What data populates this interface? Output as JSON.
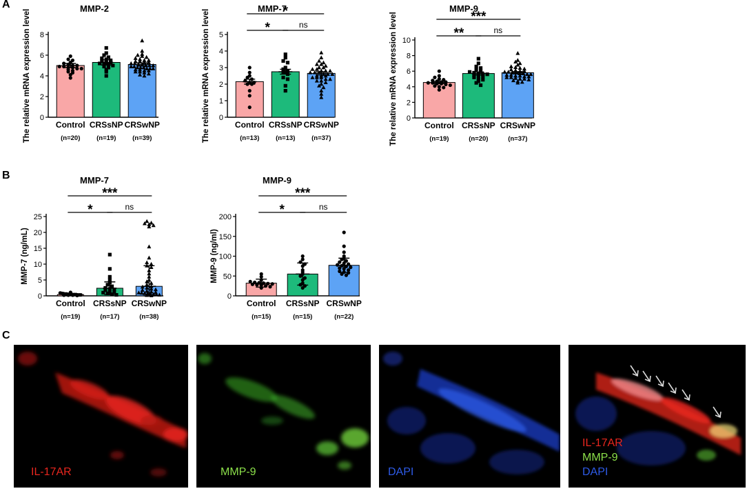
{
  "panel_letters": {
    "a": "A",
    "b": "B",
    "c": "C"
  },
  "colors": {
    "control": "#F9A7A7",
    "crssnp": "#1DBA7B",
    "crswnp": "#5DA3F5",
    "arrow": "#D9D9D9",
    "red_channel": "#E8261E",
    "green_channel": "#8CE04A",
    "blue_channel": "#2E5BE8"
  },
  "chart_data": [
    {
      "type": "bar",
      "title": "MMP-2",
      "ylabel": "The relative mRNA expression level",
      "categories": [
        "Control",
        "CRSsNP",
        "CRSwNP"
      ],
      "n_labels": [
        "(n=20)",
        "(n=19)",
        "(n=39)"
      ],
      "values": [
        5.0,
        5.3,
        5.1
      ],
      "error": [
        0.2,
        0.25,
        0.15
      ],
      "ylim": [
        0,
        8
      ],
      "yticks": [
        0,
        2,
        4,
        6,
        8
      ],
      "markers": [
        "circle",
        "square",
        "triangle"
      ],
      "points": [
        [
          5.9,
          5.6,
          5.5,
          5.3,
          5.2,
          5.1,
          5.0,
          5.0,
          4.9,
          4.9,
          4.8,
          4.8,
          4.7,
          4.7,
          4.6,
          4.5,
          4.4,
          4.3,
          4.1,
          3.8
        ],
        [
          6.7,
          6.2,
          6.0,
          5.8,
          5.7,
          5.6,
          5.5,
          5.4,
          5.3,
          5.3,
          5.2,
          5.2,
          5.1,
          5.0,
          4.9,
          4.8,
          4.6,
          4.4,
          4.0
        ],
        [
          7.4,
          6.4,
          6.1,
          6.0,
          5.9,
          5.8,
          5.7,
          5.6,
          5.5,
          5.5,
          5.4,
          5.4,
          5.3,
          5.3,
          5.2,
          5.2,
          5.1,
          5.1,
          5.0,
          5.0,
          5.0,
          4.9,
          4.9,
          4.8,
          4.8,
          4.8,
          4.7,
          4.7,
          4.7,
          4.6,
          4.6,
          4.5,
          4.5,
          4.4,
          4.4,
          4.3,
          4.2,
          4.1,
          4.0
        ]
      ],
      "comparisons": []
    },
    {
      "type": "bar",
      "title": "MMP-7",
      "ylabel": "The relative mRNA expression level",
      "categories": [
        "Control",
        "CRSsNP",
        "CRSwNP"
      ],
      "n_labels": [
        "(n=13)",
        "(n=13)",
        "(n=37)"
      ],
      "values": [
        2.15,
        2.75,
        2.65
      ],
      "error": [
        0.15,
        0.15,
        0.1
      ],
      "ylim": [
        0,
        5
      ],
      "yticks": [
        0,
        1,
        2,
        3,
        4,
        5
      ],
      "markers": [
        "circle",
        "square",
        "triangle"
      ],
      "points": [
        [
          3.0,
          2.7,
          2.5,
          2.4,
          2.3,
          2.2,
          2.1,
          2.1,
          2.0,
          2.0,
          1.6,
          1.3,
          0.6
        ],
        [
          3.8,
          3.6,
          3.4,
          3.3,
          3.0,
          2.9,
          2.8,
          2.7,
          2.6,
          2.4,
          2.3,
          1.9,
          1.6
        ],
        [
          3.9,
          3.6,
          3.4,
          3.3,
          3.2,
          3.2,
          3.1,
          3.0,
          3.0,
          2.9,
          2.9,
          2.8,
          2.8,
          2.8,
          2.7,
          2.7,
          2.7,
          2.6,
          2.6,
          2.6,
          2.5,
          2.5,
          2.5,
          2.4,
          2.4,
          2.4,
          2.3,
          2.3,
          2.2,
          2.2,
          2.1,
          2.0,
          1.9,
          1.8,
          1.6,
          1.4,
          1.2
        ]
      ],
      "comparisons": [
        {
          "from": 0,
          "to": 1,
          "label": "*",
          "level": 1
        },
        {
          "from": 1,
          "to": 2,
          "label": "ns",
          "level": 1
        },
        {
          "from": 0,
          "to": 2,
          "label": "*",
          "level": 2
        }
      ]
    },
    {
      "type": "bar",
      "title": "MMP-9",
      "ylabel": "The relative mRNA expression level",
      "categories": [
        "Control",
        "CRSsNP",
        "CRSwNP"
      ],
      "n_labels": [
        "(n=19)",
        "(n=20)",
        "(n=37)"
      ],
      "values": [
        4.55,
        5.7,
        5.8
      ],
      "error": [
        0.15,
        0.2,
        0.15
      ],
      "ylim": [
        0,
        10
      ],
      "yticks": [
        0,
        2,
        4,
        6,
        8,
        10
      ],
      "markers": [
        "circle",
        "square",
        "triangle"
      ],
      "points": [
        [
          6.0,
          5.4,
          5.2,
          5.0,
          4.9,
          4.8,
          4.7,
          4.6,
          4.6,
          4.5,
          4.5,
          4.4,
          4.4,
          4.3,
          4.2,
          4.1,
          4.0,
          3.9,
          3.6
        ],
        [
          7.6,
          7.0,
          6.6,
          6.4,
          6.2,
          6.0,
          5.9,
          5.8,
          5.7,
          5.6,
          5.6,
          5.5,
          5.4,
          5.3,
          5.2,
          5.0,
          4.9,
          4.7,
          4.5,
          4.2
        ],
        [
          8.3,
          7.4,
          7.2,
          7.0,
          6.8,
          6.6,
          6.5,
          6.4,
          6.3,
          6.2,
          6.1,
          6.0,
          6.0,
          5.9,
          5.9,
          5.8,
          5.8,
          5.7,
          5.7,
          5.6,
          5.6,
          5.5,
          5.5,
          5.4,
          5.4,
          5.3,
          5.3,
          5.2,
          5.2,
          5.1,
          5.0,
          5.0,
          4.9,
          4.8,
          4.7,
          4.6,
          4.5
        ]
      ],
      "comparisons": [
        {
          "from": 0,
          "to": 1,
          "label": "**",
          "level": 1
        },
        {
          "from": 1,
          "to": 2,
          "label": "ns",
          "level": 1
        },
        {
          "from": 0,
          "to": 2,
          "label": "***",
          "level": 2
        }
      ]
    },
    {
      "type": "bar",
      "title": "MMP-7",
      "ylabel": "MMP-7 (ng/mL)",
      "categories": [
        "Control",
        "CRSsNP",
        "CRSwNP"
      ],
      "n_labels": [
        "(n=19)",
        "(n=17)",
        "(n=38)"
      ],
      "values": [
        0.4,
        2.4,
        3.0
      ],
      "error": [
        0.3,
        2.0,
        6.5
      ],
      "ylim": [
        0,
        25
      ],
      "yticks": [
        0,
        5,
        10,
        15,
        20,
        25
      ],
      "markers": [
        "circle",
        "square",
        "triangle"
      ],
      "points": [
        [
          1.1,
          0.9,
          0.8,
          0.7,
          0.6,
          0.6,
          0.5,
          0.5,
          0.5,
          0.4,
          0.4,
          0.4,
          0.3,
          0.3,
          0.3,
          0.2,
          0.2,
          0.2,
          0.1
        ],
        [
          13.0,
          8.5,
          6.0,
          5.0,
          4.2,
          3.5,
          3.0,
          2.5,
          2.2,
          2.0,
          1.8,
          1.5,
          1.2,
          1.0,
          0.8,
          0.5,
          0.3
        ],
        [
          23.5,
          23.0,
          22.8,
          22.5,
          22.2,
          21.8,
          15.5,
          12.0,
          10.5,
          10.0,
          9.5,
          9.0,
          8.0,
          7.0,
          6.0,
          5.0,
          4.5,
          4.0,
          3.5,
          3.0,
          2.8,
          2.5,
          2.2,
          2.0,
          1.8,
          1.5,
          1.3,
          1.1,
          1.0,
          0.9,
          0.8,
          0.7,
          0.6,
          0.5,
          0.4,
          0.3,
          0.2,
          0.1
        ]
      ],
      "comparisons": [
        {
          "from": 0,
          "to": 1,
          "label": "*",
          "level": 1
        },
        {
          "from": 1,
          "to": 2,
          "label": "ns",
          "level": 1
        },
        {
          "from": 0,
          "to": 2,
          "label": "***",
          "level": 2
        }
      ]
    },
    {
      "type": "bar",
      "title": "MMP-9",
      "ylabel": "MMP-9 (ng/ml)",
      "categories": [
        "Control",
        "CRSsNP",
        "CRSwNP"
      ],
      "n_labels": [
        "(n=15)",
        "(n=15)",
        "(n=22)"
      ],
      "values": [
        32,
        55,
        77
      ],
      "error": [
        10,
        28,
        18
      ],
      "ylim": [
        0,
        200
      ],
      "yticks": [
        0,
        50,
        100,
        150,
        200
      ],
      "markers": [
        "circle",
        "circle",
        "circle"
      ],
      "points": [
        [
          55,
          48,
          40,
          36,
          34,
          33,
          32,
          31,
          30,
          29,
          28,
          27,
          25,
          23,
          20
        ],
        [
          100,
          92,
          85,
          80,
          75,
          65,
          60,
          55,
          50,
          45,
          40,
          32,
          28,
          25,
          20
        ],
        [
          160,
          125,
          110,
          100,
          95,
          92,
          88,
          85,
          82,
          80,
          78,
          76,
          74,
          72,
          70,
          68,
          65,
          62,
          60,
          58,
          55,
          52
        ]
      ],
      "comparisons": [
        {
          "from": 0,
          "to": 1,
          "label": "*",
          "level": 1
        },
        {
          "from": 1,
          "to": 2,
          "label": "ns",
          "level": 1
        },
        {
          "from": 0,
          "to": 2,
          "label": "***",
          "level": 2
        }
      ]
    }
  ],
  "micrographs": [
    {
      "label": "IL-17AR",
      "stain": "red"
    },
    {
      "label": "MMP-9",
      "stain": "green"
    },
    {
      "label": "DAPI",
      "stain": "blue"
    },
    {
      "stain": "merge",
      "labels": [
        "IL-17AR",
        "MMP-9",
        "DAPI"
      ]
    }
  ]
}
